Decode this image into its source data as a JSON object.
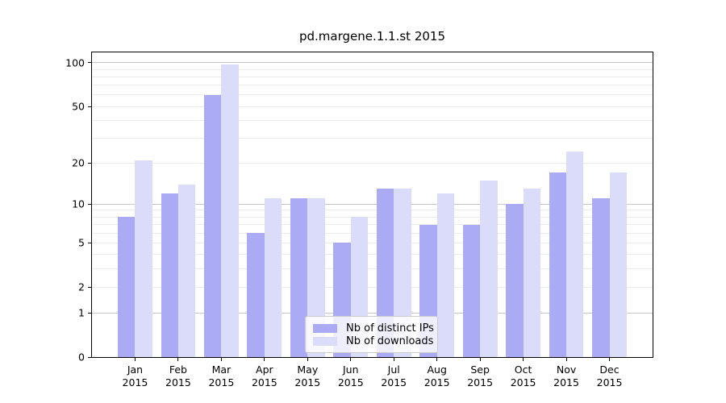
{
  "chart_data": {
    "type": "bar",
    "title": "pd.margene.1.1.st 2015",
    "scale": "log1p",
    "xtick_labels": [
      "Jan\n2015",
      "Feb\n2015",
      "Mar\n2015",
      "Apr\n2015",
      "May\n2015",
      "Jun\n2015",
      "Jul\n2015",
      "Aug\n2015",
      "Sep\n2015",
      "Oct\n2015",
      "Nov\n2015",
      "Dec\n2015"
    ],
    "series": [
      {
        "name": "Nb of distinct IPs",
        "color": "#aaaaf5",
        "values": [
          8,
          12,
          60,
          6,
          11,
          5,
          13,
          7,
          7,
          10,
          17,
          11
        ]
      },
      {
        "name": "Nb of downloads",
        "color": "#dbdbfa",
        "values": [
          21,
          14,
          98,
          11,
          11,
          8,
          13,
          12,
          15,
          13,
          24,
          17
        ]
      }
    ],
    "ylim": [
      0,
      118
    ],
    "yticks": [
      0,
      1,
      2,
      5,
      10,
      20,
      50,
      100
    ],
    "major_gridlines": [
      1,
      10,
      100
    ],
    "minor_gridlines": [
      2,
      3,
      4,
      5,
      6,
      7,
      8,
      9,
      20,
      30,
      40,
      50,
      60,
      70,
      80,
      90
    ],
    "grid": true,
    "legend_position": "lower center"
  }
}
